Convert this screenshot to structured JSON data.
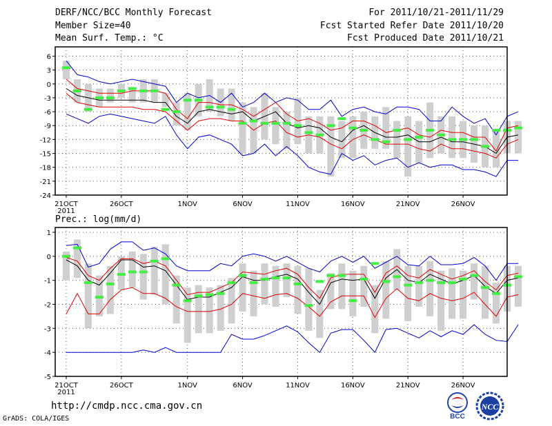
{
  "header": {
    "title": "DERF/NCC/BCC Monthly Forecast",
    "member_size": "Member Size=40",
    "variable": "Mean Surf. Temp.: °C",
    "forecast_period": "For 2011/10/21-2011/11/29",
    "refer_date": "Fcst Started Refer Date 2011/10/20",
    "produced_date": "Fcst Produced Date 2011/10/21"
  },
  "footer": {
    "url": "http://cmdp.ncc.cma.gov.cn",
    "credit": "GrADS: COLA/IGES",
    "logo1_text": "BCC",
    "logo2_text": "NCC"
  },
  "chart_data": [
    {
      "type": "line",
      "title": "Mean Surf. Temp.: °C",
      "ylim": [
        -24,
        8
      ],
      "yticks": [
        6,
        3,
        0,
        -3,
        -6,
        -9,
        -12,
        -15,
        -18,
        -21,
        -24
      ],
      "xticks": [
        {
          "day": 1,
          "label": "21OCT",
          "sublabel": "2011"
        },
        {
          "day": 6,
          "label": "26OCT"
        },
        {
          "day": 12,
          "label": "1NOV"
        },
        {
          "day": 17,
          "label": "6NOV"
        },
        {
          "day": 22,
          "label": "11NOV"
        },
        {
          "day": 27,
          "label": "16NOV"
        },
        {
          "day": 32,
          "label": "21NOV"
        },
        {
          "day": 37,
          "label": "26NOV"
        }
      ],
      "xlim": [
        0,
        41
      ],
      "series": [
        {
          "name": "max",
          "color": "#0000cc",
          "values": [
            5,
            2,
            1.5,
            0.5,
            0,
            0.5,
            1,
            0.5,
            0,
            -0.5,
            -4,
            -2,
            -3,
            -2.5,
            -4,
            -2,
            -5,
            -4,
            -2,
            -4,
            -3,
            -3.5,
            -5.5,
            -5.5,
            -3.5,
            -7,
            -5.5,
            -5,
            -6,
            -6.5,
            -5,
            -5,
            -5.5,
            -8,
            -8,
            -5,
            -7,
            -8.5,
            -7.5,
            -11,
            -7,
            -6
          ]
        },
        {
          "name": "upper",
          "color": "#dd0000",
          "values": [
            1,
            -1,
            -1.5,
            -2,
            -2,
            -2,
            -1.5,
            -1.5,
            -1.5,
            -2,
            -5.5,
            -7.5,
            -4,
            -4,
            -4.5,
            -4.5,
            -5.5,
            -7,
            -5.5,
            -4,
            -6.5,
            -8,
            -7.5,
            -8.5,
            -10,
            -9.5,
            -8,
            -8,
            -9,
            -10.5,
            -10,
            -9.5,
            -11,
            -11.5,
            -10,
            -10.5,
            -10.5,
            -11.5,
            -11.5,
            -14.5,
            -9.5,
            -9
          ]
        },
        {
          "name": "mean",
          "color": "#000000",
          "values": [
            -1,
            -2.5,
            -3,
            -3.5,
            -3.5,
            -3.5,
            -3.5,
            -3.5,
            -4,
            -4,
            -7,
            -8.5,
            -6,
            -5.5,
            -6,
            -6.5,
            -6,
            -8,
            -7,
            -6,
            -8.5,
            -9.5,
            -9,
            -9.5,
            -11.5,
            -12.5,
            -10,
            -9,
            -10.5,
            -11.5,
            -11.5,
            -11,
            -12.5,
            -12.5,
            -11.5,
            -12.5,
            -12.5,
            -13,
            -13.5,
            -15,
            -11.5,
            -11
          ]
        },
        {
          "name": "lower",
          "color": "#dd0000",
          "values": [
            -2,
            -4,
            -4.5,
            -5,
            -5,
            -5,
            -5,
            -5.5,
            -5.5,
            -6,
            -8,
            -10,
            -8,
            -7.5,
            -7.5,
            -8,
            -8,
            -10,
            -8.5,
            -8,
            -10.5,
            -11.5,
            -11,
            -11.5,
            -13,
            -14,
            -12,
            -11,
            -12,
            -13,
            -13,
            -13,
            -14,
            -14.5,
            -13,
            -14,
            -14,
            -14.5,
            -15,
            -16,
            -13,
            -12
          ]
        },
        {
          "name": "min",
          "color": "#0000cc",
          "values": [
            -6.5,
            -7.5,
            -8.5,
            -7,
            -6.5,
            -7,
            -7.5,
            -8,
            -8.5,
            -7,
            -11,
            -14,
            -11.5,
            -11,
            -12,
            -13,
            -15.5,
            -15,
            -13,
            -15.5,
            -13.5,
            -15.5,
            -18,
            -19,
            -19.5,
            -15,
            -16.5,
            -15.5,
            -17.5,
            -16.5,
            -16,
            -18,
            -17,
            -18,
            -17.5,
            -17.5,
            -18.5,
            -18.5,
            -19,
            -20,
            -16.5,
            -16.5
          ]
        }
      ],
      "boxes": [
        [
          1,
          5
        ],
        [
          -4,
          1
        ],
        [
          -6,
          0
        ],
        [
          -5,
          -1
        ],
        [
          -4,
          -1
        ],
        [
          -3,
          0
        ],
        [
          -4,
          -1
        ],
        [
          -4,
          1
        ],
        [
          -4,
          1
        ],
        [
          -5,
          -2
        ],
        [
          -9,
          -4
        ],
        [
          -10,
          -2
        ],
        [
          -7,
          0
        ],
        [
          -6,
          1
        ],
        [
          -7,
          -1
        ],
        [
          -8,
          -1
        ],
        [
          -15,
          -4
        ],
        [
          -15,
          -5
        ],
        [
          -12,
          -2
        ],
        [
          -13,
          -5
        ],
        [
          -14,
          -6
        ],
        [
          -13,
          -3
        ],
        [
          -15,
          -7
        ],
        [
          -15,
          -7
        ],
        [
          -20,
          -7
        ],
        [
          -16,
          -8
        ],
        [
          -16,
          -7
        ],
        [
          -14,
          -6
        ],
        [
          -14,
          -7
        ],
        [
          -14,
          -5
        ],
        [
          -16,
          -8
        ],
        [
          -20,
          -7
        ],
        [
          -17,
          -8
        ],
        [
          -16,
          -4
        ],
        [
          -15,
          -7
        ],
        [
          -16,
          -7
        ],
        [
          -16,
          -8
        ],
        [
          -17,
          -9
        ],
        [
          -18,
          -9
        ],
        [
          -18,
          -10
        ],
        [
          -15,
          -8
        ],
        [
          -15,
          -8
        ]
      ],
      "markers": [
        3.5,
        -1.5,
        -5.5,
        -3,
        -3,
        -1.5,
        -1,
        -1.5,
        -1.5,
        -5.5,
        -6,
        -3.5,
        -3.5,
        -5,
        -5,
        -5.5,
        -8.5,
        -8,
        -8.5,
        -8.5,
        -8.5,
        -9,
        -10.5,
        -11,
        -9,
        -7.5,
        -9.5,
        -10,
        -12,
        -12.5,
        -10,
        -12,
        -11.5,
        -10,
        -11,
        -12,
        -12,
        -12,
        -13.5,
        -10,
        -10,
        -9.5
      ]
    },
    {
      "type": "line",
      "title": "Prec.: log(mm/d)",
      "ylim": [
        -5,
        1.2
      ],
      "yticks": [
        1,
        0,
        -1,
        -2,
        -3,
        -4,
        -5
      ],
      "xticks": [
        {
          "day": 1,
          "label": "21OCT",
          "sublabel": "2011"
        },
        {
          "day": 6,
          "label": "26OCT"
        },
        {
          "day": 12,
          "label": "1NOV"
        },
        {
          "day": 17,
          "label": "6NOV"
        },
        {
          "day": 22,
          "label": "11NOV"
        },
        {
          "day": 27,
          "label": "16NOV"
        },
        {
          "day": 32,
          "label": "21NOV"
        },
        {
          "day": 37,
          "label": "26NOV"
        }
      ],
      "xlim": [
        0,
        41
      ],
      "series": [
        {
          "name": "max",
          "color": "#0000cc",
          "values": [
            0.45,
            0.5,
            -0.45,
            -0.3,
            0.3,
            0.6,
            0.6,
            0.25,
            0.35,
            0.1,
            -0.4,
            -0.6,
            -0.6,
            -0.6,
            -0.3,
            -0.4,
            0,
            0.1,
            0,
            -0.2,
            0,
            -0.25,
            -0.5,
            -0.65,
            -0.2,
            0,
            -0.25,
            0,
            -0.5,
            -0.25,
            0,
            -0.35,
            -0.4,
            0,
            -0.35,
            -0.35,
            -0.3,
            -0.05,
            -0.4,
            -1,
            -0.3,
            -0.3
          ]
        },
        {
          "name": "upper",
          "color": "#dd0000",
          "values": [
            -0.05,
            -0.2,
            -0.8,
            -1,
            -0.5,
            -0.1,
            -0.1,
            -0.3,
            -0.2,
            -0.4,
            -1,
            -1.6,
            -1.5,
            -1.5,
            -1.3,
            -1.1,
            -0.65,
            -0.7,
            -0.75,
            -0.6,
            -0.5,
            -0.75,
            -1.3,
            -1.75,
            -0.9,
            -0.75,
            -0.75,
            -0.75,
            -1.5,
            -0.7,
            -0.4,
            -0.8,
            -0.9,
            -0.55,
            -0.75,
            -0.95,
            -0.8,
            -0.6,
            -1.05,
            -1.4,
            -0.8,
            -0.7
          ]
        },
        {
          "name": "mean",
          "color": "#000000",
          "values": [
            -0.15,
            -0.4,
            -1,
            -1.2,
            -0.7,
            -0.15,
            -0.15,
            -0.45,
            -0.4,
            -0.6,
            -1.2,
            -1.8,
            -1.7,
            -1.7,
            -1.5,
            -1.3,
            -0.85,
            -1,
            -1,
            -0.85,
            -0.75,
            -0.95,
            -1.5,
            -2,
            -1.1,
            -0.95,
            -1,
            -0.95,
            -1.75,
            -0.9,
            -0.55,
            -1,
            -1.1,
            -0.75,
            -0.95,
            -1.15,
            -1,
            -0.8,
            -1.25,
            -1.55,
            -1,
            -0.9
          ]
        },
        {
          "name": "lower",
          "color": "#dd0000",
          "values": [
            -2.4,
            -1.55,
            -2.4,
            -2.4,
            -1.8,
            -1.4,
            -1.3,
            -1.55,
            -1.55,
            -1.75,
            -2.1,
            -2.3,
            -2.3,
            -2.3,
            -2.2,
            -2,
            -1.55,
            -1.65,
            -1.75,
            -1.6,
            -1.55,
            -1.75,
            -2.1,
            -2.5,
            -1.9,
            -1.65,
            -1.65,
            -1.65,
            -2.55,
            -1.75,
            -1.35,
            -1.75,
            -1.85,
            -1.55,
            -1.75,
            -1.85,
            -1.75,
            -1.5,
            -2,
            -2.5,
            -1.7,
            -1.6
          ]
        },
        {
          "name": "min",
          "color": "#0000cc",
          "values": [
            -4,
            -4,
            -4,
            -4,
            -4,
            -4,
            -4,
            -3.9,
            -4,
            -3.8,
            -4,
            -4,
            -4,
            -4,
            -4,
            -3.25,
            -3.45,
            -3.45,
            -3.3,
            -3.1,
            -2.9,
            -3.15,
            -3.6,
            -4,
            -3.2,
            -3.05,
            -3.05,
            -3.5,
            -4,
            -3.05,
            -3,
            -3.2,
            -3.4,
            -3.1,
            -3.35,
            -3.1,
            -3.25,
            -2.85,
            -3.25,
            -3.5,
            -3.55,
            -2.85
          ]
        }
      ],
      "boxes": [
        [
          -1,
          0.2
        ],
        [
          -0.9,
          0.7
        ],
        [
          -3,
          -0.3
        ],
        [
          -2.5,
          -0.8
        ],
        [
          -2.4,
          -0.4
        ],
        [
          -1.4,
          0
        ],
        [
          -1.3,
          0.2
        ],
        [
          -1.8,
          0.1
        ],
        [
          -1.6,
          0.4
        ],
        [
          -2,
          0.5
        ],
        [
          -2.8,
          -0.8
        ],
        [
          -3.6,
          -1.3
        ],
        [
          -3.2,
          -1.2
        ],
        [
          -3.2,
          -1.3
        ],
        [
          -3.1,
          -1.2
        ],
        [
          -2.8,
          -0.9
        ],
        [
          -2.3,
          -0.3
        ],
        [
          -2.5,
          -0.6
        ],
        [
          -2,
          -0.3
        ],
        [
          -2.1,
          -0.4
        ],
        [
          -1.7,
          -0.3
        ],
        [
          -2.4,
          -0.4
        ],
        [
          -3.1,
          -0.5
        ],
        [
          -3.4,
          -1.4
        ],
        [
          -2.2,
          -0.7
        ],
        [
          -2.2,
          -0.3
        ],
        [
          -2.5,
          -0.6
        ],
        [
          -2.1,
          -0.4
        ],
        [
          -3.2,
          -1.2
        ],
        [
          -2.6,
          -0.2
        ],
        [
          -1.4,
          0.3
        ],
        [
          -2.7,
          -0.4
        ],
        [
          -2.1,
          -0.4
        ],
        [
          -2.5,
          -0.2
        ],
        [
          -3.1,
          -0.6
        ],
        [
          -2.6,
          -0.5
        ],
        [
          -2.6,
          -0.6
        ],
        [
          -1.8,
          -0.3
        ],
        [
          -2.6,
          -0.4
        ],
        [
          -2.8,
          -1.1
        ],
        [
          -2.3,
          -0.4
        ],
        [
          -2.1,
          -0.4
        ]
      ],
      "markers": [
        0,
        0.35,
        -1.1,
        -1.7,
        -1.15,
        -0.75,
        -0.65,
        -0.65,
        -0.2,
        -0.1,
        -1.2,
        -1.85,
        -1.65,
        -1.6,
        -1.55,
        -1.1,
        -0.8,
        -1.1,
        -0.95,
        -0.9,
        -0.9,
        -1.15,
        -2.05,
        -1.05,
        -0.8,
        -0.8,
        -1.85,
        -0.95,
        -0.3,
        -1.05,
        -0.85,
        -1.2,
        -1.1,
        -1.0,
        -1.1,
        -1.1,
        -0.95,
        -0.8,
        -1.3,
        -1.55,
        -1.2,
        -0.85
      ]
    }
  ]
}
